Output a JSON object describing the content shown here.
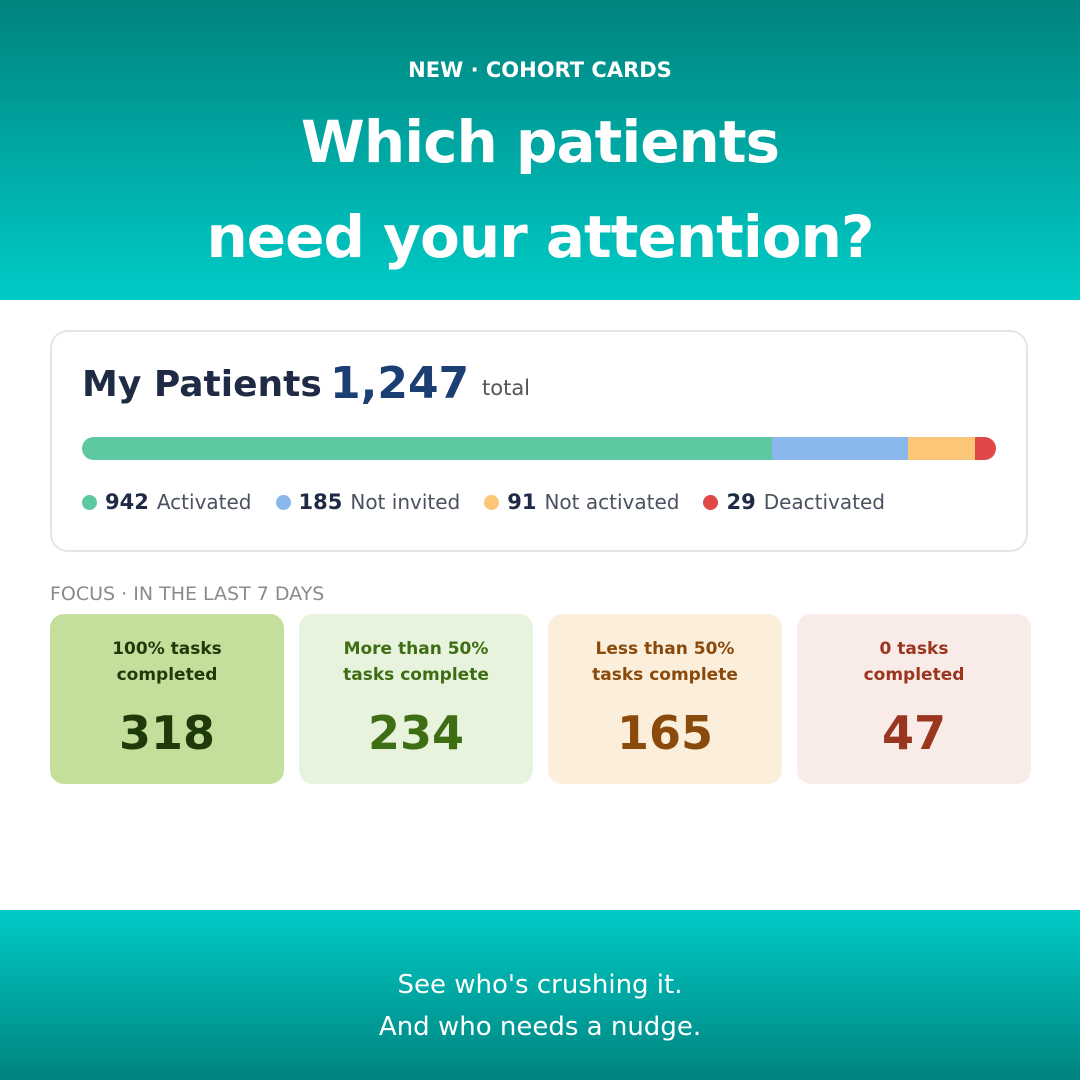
{
  "header": {
    "eyebrow": "NEW · COHORT CARDS",
    "title_lines": [
      "Which patients",
      "need your attention?"
    ]
  },
  "summary": {
    "title": "My Patients",
    "total": "1,247",
    "total_label": "total",
    "segments": [
      {
        "count": 942,
        "label": "Activated",
        "color": "#5ec9a0"
      },
      {
        "count": 185,
        "label": "Not invited",
        "color": "#8ab8ec"
      },
      {
        "count": 91,
        "label": "Not activated",
        "color": "#fbc678"
      },
      {
        "count": 29,
        "label": "Deactivated",
        "color": "#e04848"
      }
    ]
  },
  "focus": {
    "heading": "FOCUS · IN THE LAST 7 DAYS",
    "tiles": [
      {
        "label_lines": [
          "100% tasks",
          "completed"
        ],
        "count": 318
      },
      {
        "label_lines": [
          "More than 50%",
          "tasks complete"
        ],
        "count": 234
      },
      {
        "label_lines": [
          "Less than 50%",
          "tasks complete"
        ],
        "count": 165
      },
      {
        "label_lines": [
          "0 tasks",
          "completed"
        ],
        "count": 47
      }
    ]
  },
  "footer": {
    "lines": [
      "See who's crushing it.",
      "And who needs a nudge."
    ]
  }
}
